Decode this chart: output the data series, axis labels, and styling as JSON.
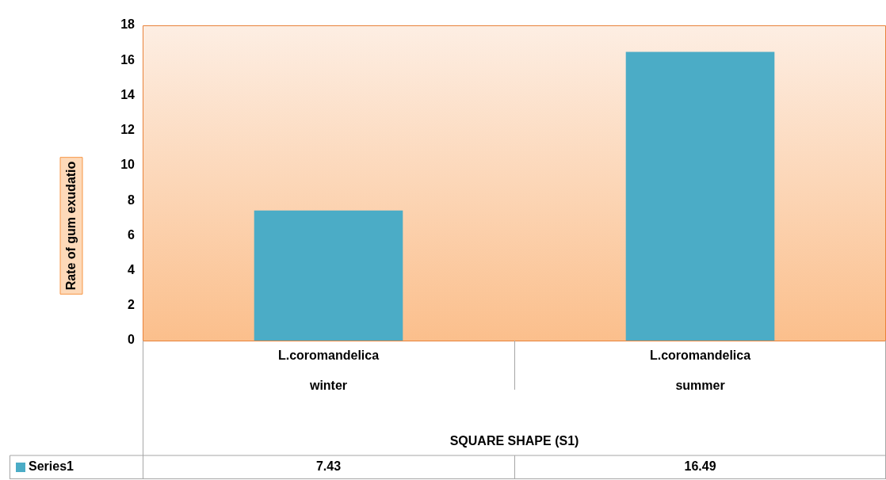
{
  "chart_data": {
    "type": "bar",
    "categories": [
      "L.coromandelica winter",
      "L.coromandelica summer"
    ],
    "annotations": [
      "SQUARE SHAPE (S1)"
    ],
    "ylabel": "Rate of gum exudatio",
    "series": [
      {
        "name": "Series1",
        "color": "#4bacc6",
        "values": [
          7.43,
          16.49
        ]
      }
    ],
    "ylim": [
      0,
      18
    ],
    "yticks": [
      0,
      2,
      4,
      6,
      8,
      10,
      12,
      14,
      16,
      18
    ],
    "grid": false,
    "legend": "bottom",
    "data_labels": true
  }
}
